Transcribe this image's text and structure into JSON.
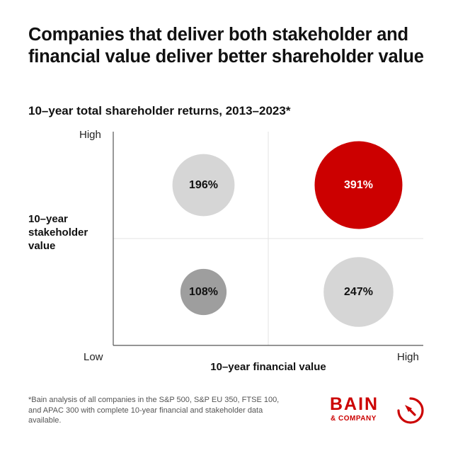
{
  "title": "Companies that deliver both stakeholder and financial value deliver better shareholder value",
  "subtitle": "10–year total shareholder returns, 2013–2023*",
  "footnote": "*Bain analysis of all companies in the S&P 500, S&P EU 350, FTSE 100, and APAC 300 with complete 10-year financial and stakeholder data available.",
  "logo": {
    "word": "BAIN",
    "sub": "& COMPANY",
    "icon": "bain-logo-icon"
  },
  "colors": {
    "highlight": "#cc0000",
    "light_gray": "#d6d6d6",
    "mid_gray": "#9e9e9e",
    "axis": "#555555",
    "divider": "#e3e3e3"
  },
  "chart_data": {
    "type": "scatter",
    "xlabel": "10–year financial value",
    "ylabel": "10–year stakeholder value",
    "x_ticks": [
      "Low",
      "High"
    ],
    "y_ticks": [
      "High"
    ],
    "quadrants": [
      {
        "financial": "Low",
        "stakeholder": "High",
        "value": 196,
        "label": "196%",
        "color": "#d6d6d6",
        "text_color": "#111111"
      },
      {
        "financial": "High",
        "stakeholder": "High",
        "value": 391,
        "label": "391%",
        "color": "#cc0000",
        "text_color": "#ffffff"
      },
      {
        "financial": "Low",
        "stakeholder": "Low",
        "value": 108,
        "label": "108%",
        "color": "#9e9e9e",
        "text_color": "#111111"
      },
      {
        "financial": "High",
        "stakeholder": "Low",
        "value": 247,
        "label": "247%",
        "color": "#d6d6d6",
        "text_color": "#111111"
      }
    ]
  }
}
